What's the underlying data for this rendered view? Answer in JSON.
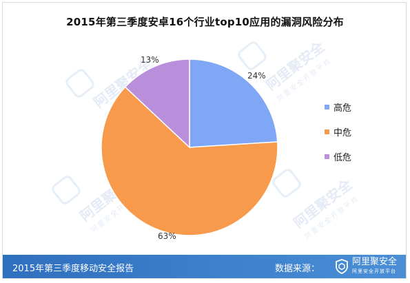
{
  "chart_data": {
    "type": "pie",
    "title": "2015年第三季度安卓16个行业top10应用的漏洞风险分布",
    "slices": [
      {
        "name": "高危",
        "value": 24,
        "label": "24%",
        "color": "#7fa7f5"
      },
      {
        "name": "中危",
        "value": 63,
        "label": "63%",
        "color": "#f89a4c"
      },
      {
        "name": "低危",
        "value": 13,
        "label": "13%",
        "color": "#b98fdc"
      }
    ],
    "legend_position": "right"
  },
  "watermark": {
    "brand": "阿里聚安全",
    "sub": "阿里安全开放平台"
  },
  "footer": {
    "report": "2015年第三季度移动安全报告",
    "source_label": "数据来源：",
    "brand": "阿里聚安全",
    "brand_sub": "阿里安全开放平台"
  },
  "colors": {
    "footer_bg": "#3a7ccb",
    "pie_stroke": "#ffffff"
  }
}
